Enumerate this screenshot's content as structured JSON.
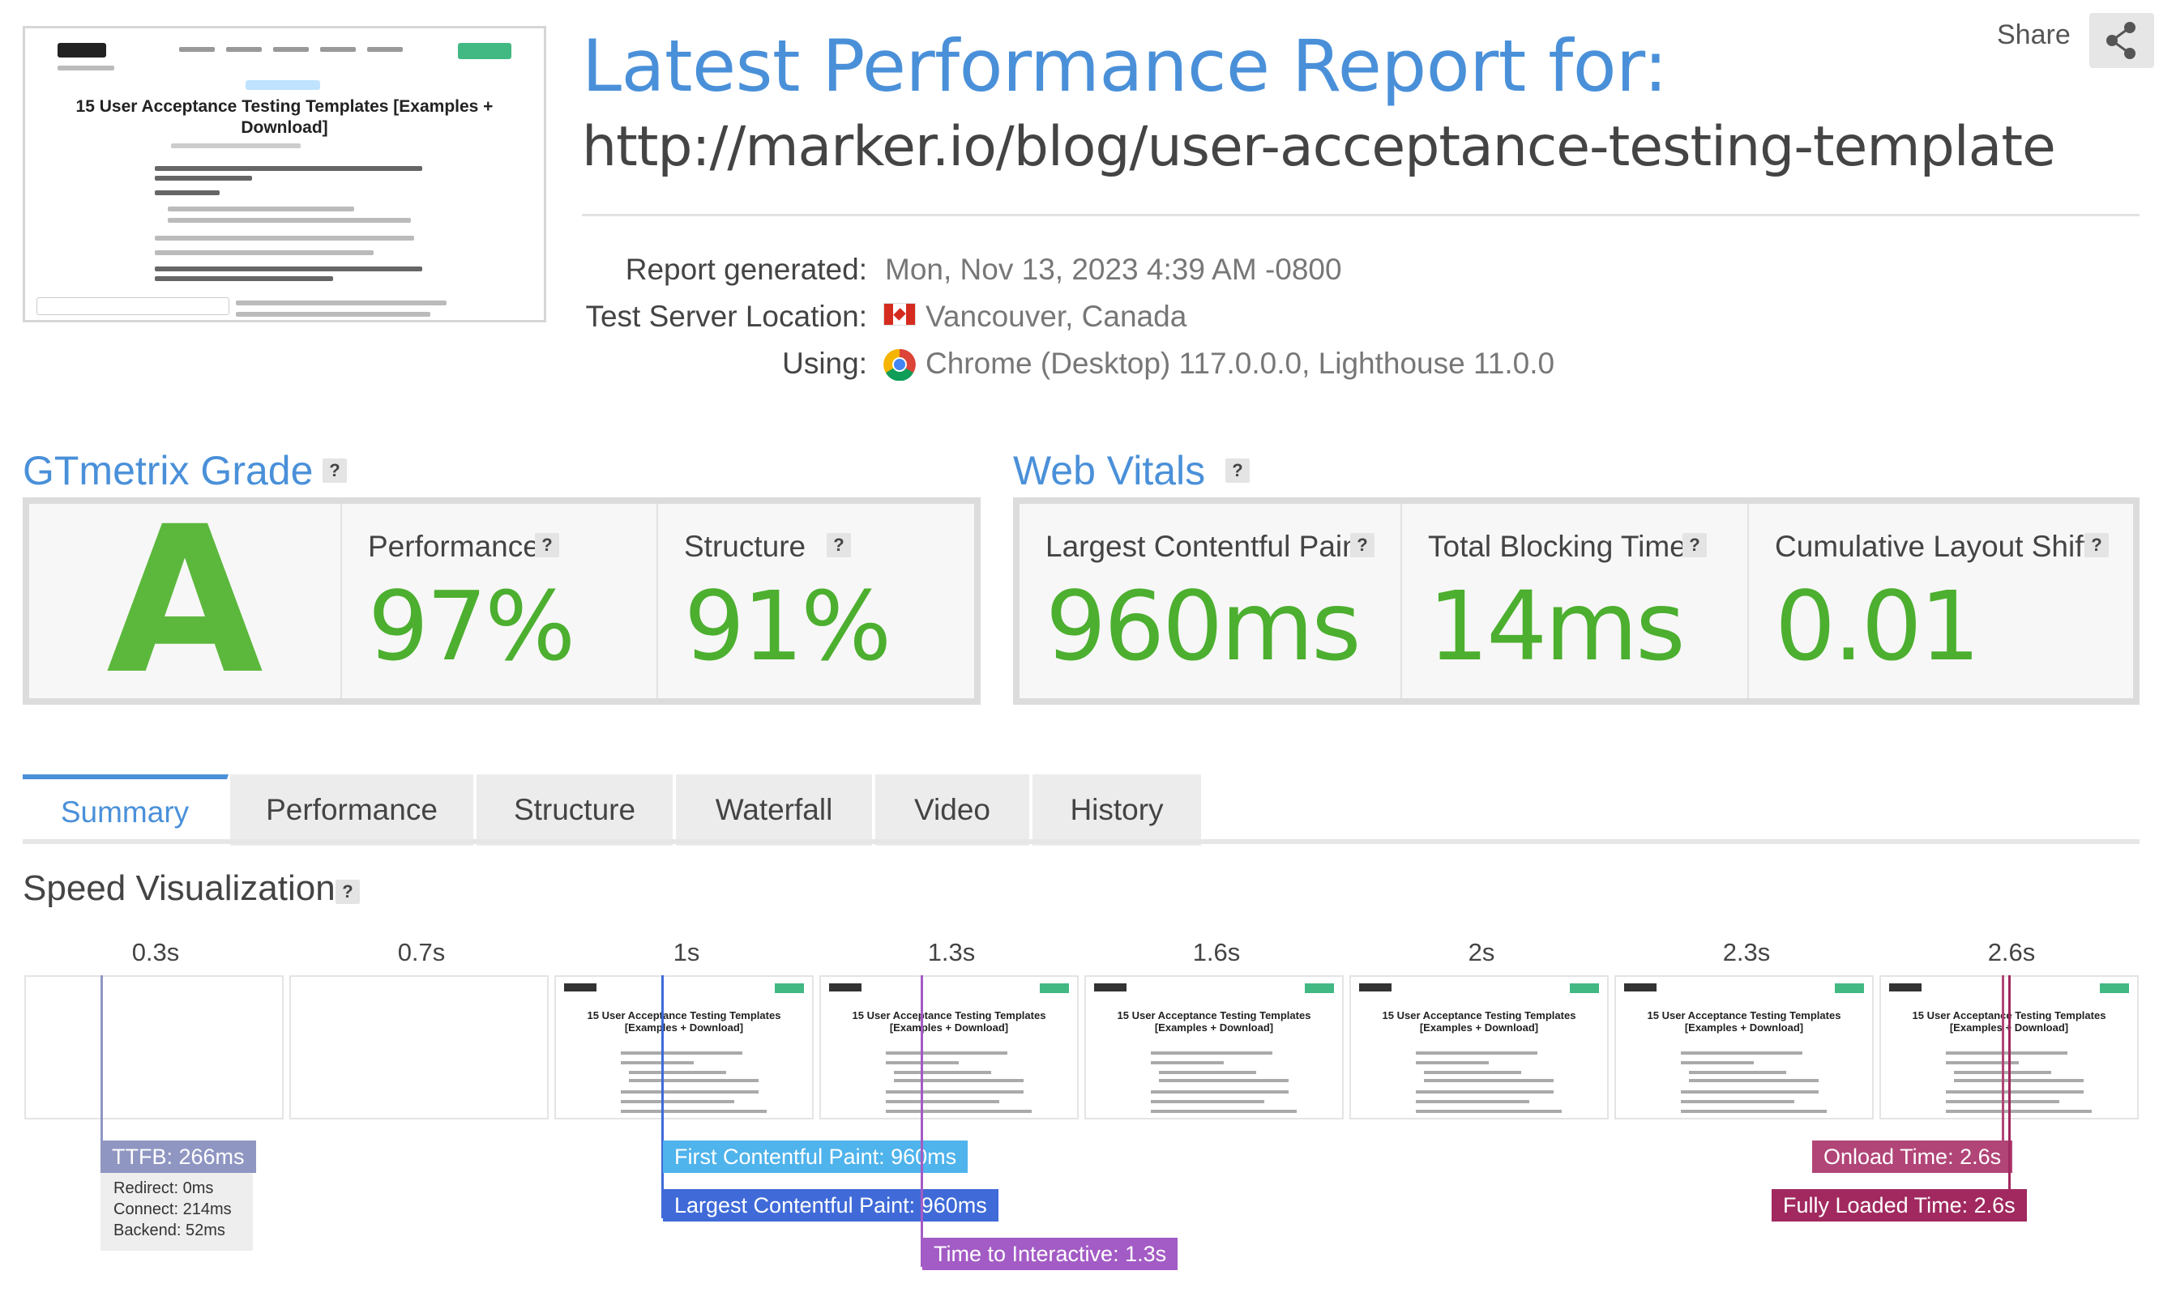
{
  "thumbnail": {
    "title": "15 User Acceptance Testing Templates [Examples + Download]"
  },
  "header": {
    "title": "Latest Performance Report for:",
    "url": "http://marker.io/blog/user-acceptance-testing-template",
    "share_label": "Share"
  },
  "report_meta": {
    "generated_label": "Report generated:",
    "generated_value": "Mon, Nov 13, 2023 4:39 AM -0800",
    "location_label": "Test Server Location:",
    "location_value": "Vancouver, Canada",
    "using_label": "Using:",
    "using_value": "Chrome (Desktop) 117.0.0.0, Lighthouse 11.0.0"
  },
  "gtmetrix_grade": {
    "heading": "GTmetrix Grade",
    "help": "?",
    "grade": "A",
    "performance_label": "Performance",
    "performance_value": "97%",
    "structure_label": "Structure",
    "structure_value": "91%"
  },
  "web_vitals": {
    "heading": "Web Vitals",
    "help": "?",
    "lcp_label": "Largest Contentful Paint",
    "lcp_value": "960ms",
    "tbt_label": "Total Blocking Time",
    "tbt_value": "14ms",
    "cls_label": "Cumulative Layout Shift",
    "cls_value": "0.01"
  },
  "tabs": [
    {
      "label": "Summary",
      "active": true
    },
    {
      "label": "Performance",
      "active": false
    },
    {
      "label": "Structure",
      "active": false
    },
    {
      "label": "Waterfall",
      "active": false
    },
    {
      "label": "Video",
      "active": false
    },
    {
      "label": "History",
      "active": false
    }
  ],
  "speed_visualization": {
    "heading": "Speed Visualization",
    "help": "?",
    "frame_times": [
      "0.3s",
      "0.7s",
      "1s",
      "1.3s",
      "1.6s",
      "2s",
      "2.3s",
      "2.6s"
    ],
    "frame_title_1": "15 User Acceptance Testing Templates [Examples + Download]",
    "frame_title_n": "15 User Acceptance Testing Templates [Examples + Download]",
    "ttfb": "TTFB: 266ms",
    "ttfb_redirect": "Redirect: 0ms",
    "ttfb_connect": "Connect: 214ms",
    "ttfb_backend": "Backend: 52ms",
    "fcp": "First Contentful Paint: 960ms",
    "lcp": "Largest Contentful Paint: 960ms",
    "tti": "Time to Interactive: 1.3s",
    "onload": "Onload Time: 2.6s",
    "fully_loaded": "Fully Loaded Time: 2.6s"
  },
  "colors": {
    "accent_blue": "#4a90d9",
    "grade_green": "#5cb83c",
    "ttfb": "#8f96c2",
    "fcp": "#4fb3ec",
    "lcp": "#3f6ad8",
    "tti": "#a35bc5",
    "onload": "#b14577",
    "fully_loaded": "#a1295f"
  }
}
